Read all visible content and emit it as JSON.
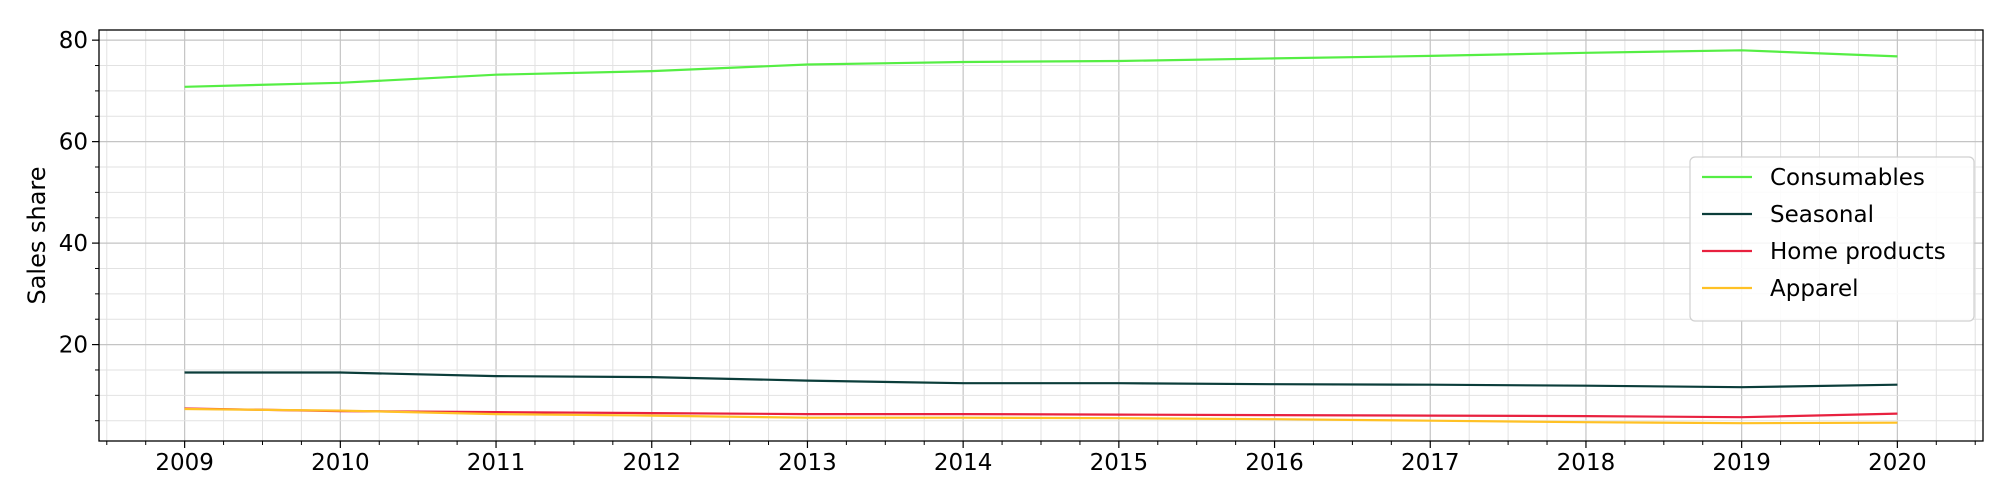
{
  "chart_data": {
    "type": "line",
    "title": "",
    "xlabel": "",
    "ylabel": "Sales share",
    "x": [
      2009,
      2010,
      2011,
      2012,
      2013,
      2014,
      2015,
      2016,
      2017,
      2018,
      2019,
      2020
    ],
    "xlim": [
      2008.45,
      2020.55
    ],
    "ylim": [
      1,
      82
    ],
    "yticks": [
      20,
      40,
      60,
      80
    ],
    "grid": "major and minor",
    "legend_position": "right",
    "series": [
      {
        "name": "Consumables",
        "color": "#55ee44",
        "values": [
          70.8,
          71.6,
          73.2,
          73.9,
          75.2,
          75.7,
          75.9,
          76.4,
          76.9,
          77.5,
          78.0,
          76.8
        ]
      },
      {
        "name": "Seasonal",
        "color": "#0b3d3a",
        "values": [
          14.5,
          14.5,
          13.8,
          13.6,
          12.9,
          12.4,
          12.4,
          12.2,
          12.1,
          11.9,
          11.6,
          12.1
        ]
      },
      {
        "name": "Home products",
        "color": "#e8213f",
        "values": [
          7.4,
          6.9,
          6.7,
          6.5,
          6.3,
          6.3,
          6.2,
          6.1,
          6.0,
          5.9,
          5.7,
          6.4
        ]
      },
      {
        "name": "Apparel",
        "color": "#ffc125",
        "values": [
          7.3,
          7.0,
          6.3,
          6.0,
          5.6,
          5.6,
          5.5,
          5.3,
          5.0,
          4.7,
          4.5,
          4.6
        ]
      }
    ]
  }
}
